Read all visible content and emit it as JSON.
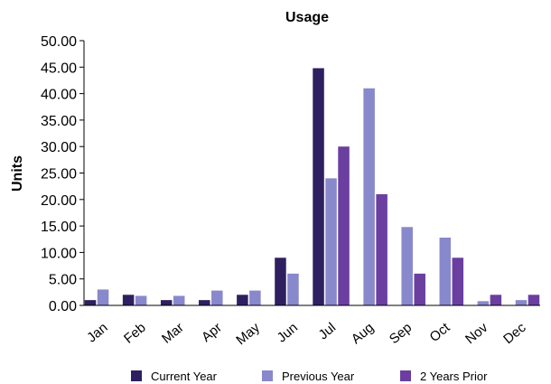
{
  "chart_data": {
    "type": "bar",
    "title": "Usage",
    "xlabel": "",
    "ylabel": "Units",
    "ylim": [
      0,
      50
    ],
    "ytick_step": 5,
    "ytick_format": "0.00",
    "grid": false,
    "legend_position": "bottom",
    "categories": [
      "Jan",
      "Feb",
      "Mar",
      "Apr",
      "May",
      "Jun",
      "Jul",
      "Aug",
      "Sep",
      "Oct",
      "Nov",
      "Dec"
    ],
    "series": [
      {
        "name": "Current Year",
        "color": "#2e2060",
        "values": [
          1.0,
          2.0,
          1.0,
          1.0,
          2.0,
          9.0,
          44.8,
          0,
          0,
          0,
          0,
          0
        ]
      },
      {
        "name": "Previous Year",
        "color": "#8888cc",
        "values": [
          3.0,
          1.8,
          1.8,
          2.8,
          2.8,
          6.0,
          24.0,
          41.0,
          14.8,
          12.8,
          0.8,
          1.0
        ]
      },
      {
        "name": "2 Years Prior",
        "color": "#6a3fa0",
        "values": [
          0,
          0,
          0,
          0,
          0,
          0,
          30.0,
          21.0,
          6.0,
          9.0,
          2.0,
          2.0
        ]
      }
    ]
  }
}
